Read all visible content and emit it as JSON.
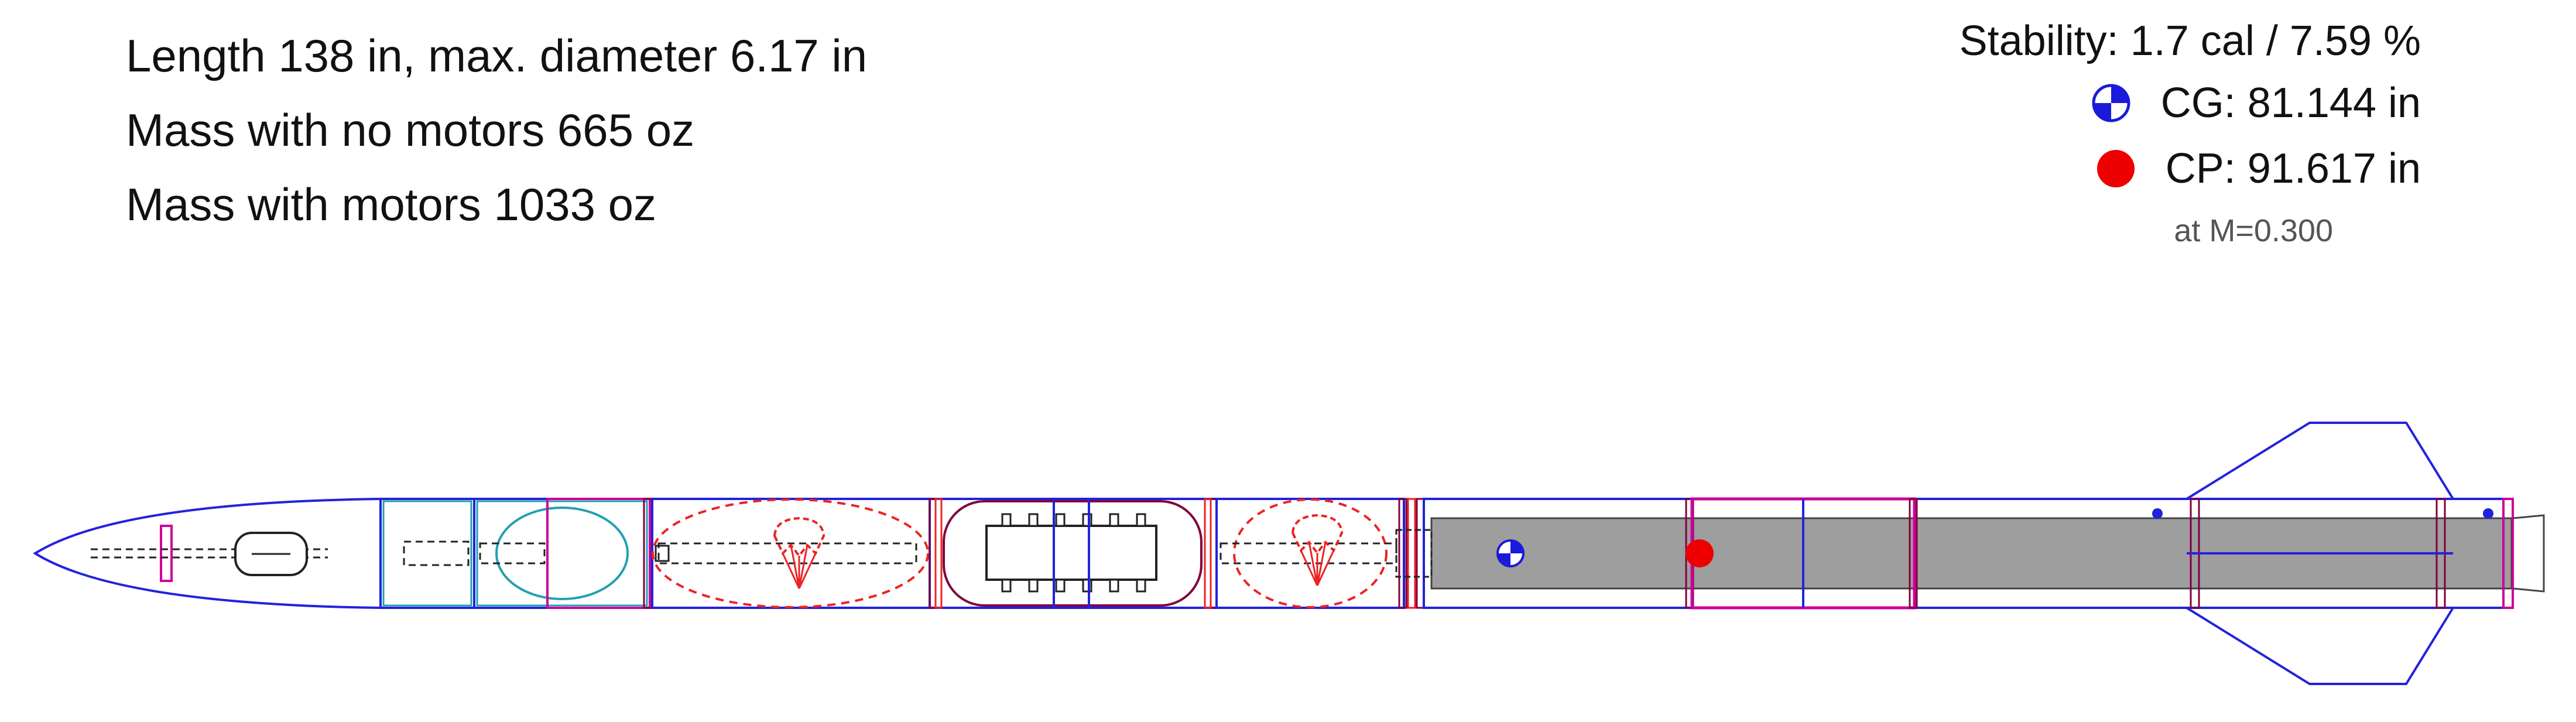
{
  "summary": {
    "length_line": "Length 138 in, max. diameter 6.17 in",
    "mass_no_motors": "Mass with no motors 665 oz",
    "mass_with_motors": "Mass with motors 1033 oz"
  },
  "stability": {
    "stability_line": "Stability: 1.7 cal / 7.59 %",
    "cg_line": "CG: 81.144 in",
    "cp_line": "CP: 91.617 in",
    "mach_line": "at M=0.300"
  },
  "colors": {
    "body_outline": "#2222dd",
    "internal_dark": "#222222",
    "inner_tube": "#800040",
    "coupler": "#cc0099",
    "parachute": "#ee2222",
    "bulkhead": "#22a0b0",
    "motor_fill": "#9e9e9e",
    "cg_marker": "#1a1adb",
    "cp_marker": "#ee0000"
  },
  "icons": {
    "cg": "cg-marker-icon",
    "cp": "cp-marker-icon",
    "parachute": "parachute-icon",
    "altimeter": "altimeter-icon"
  }
}
